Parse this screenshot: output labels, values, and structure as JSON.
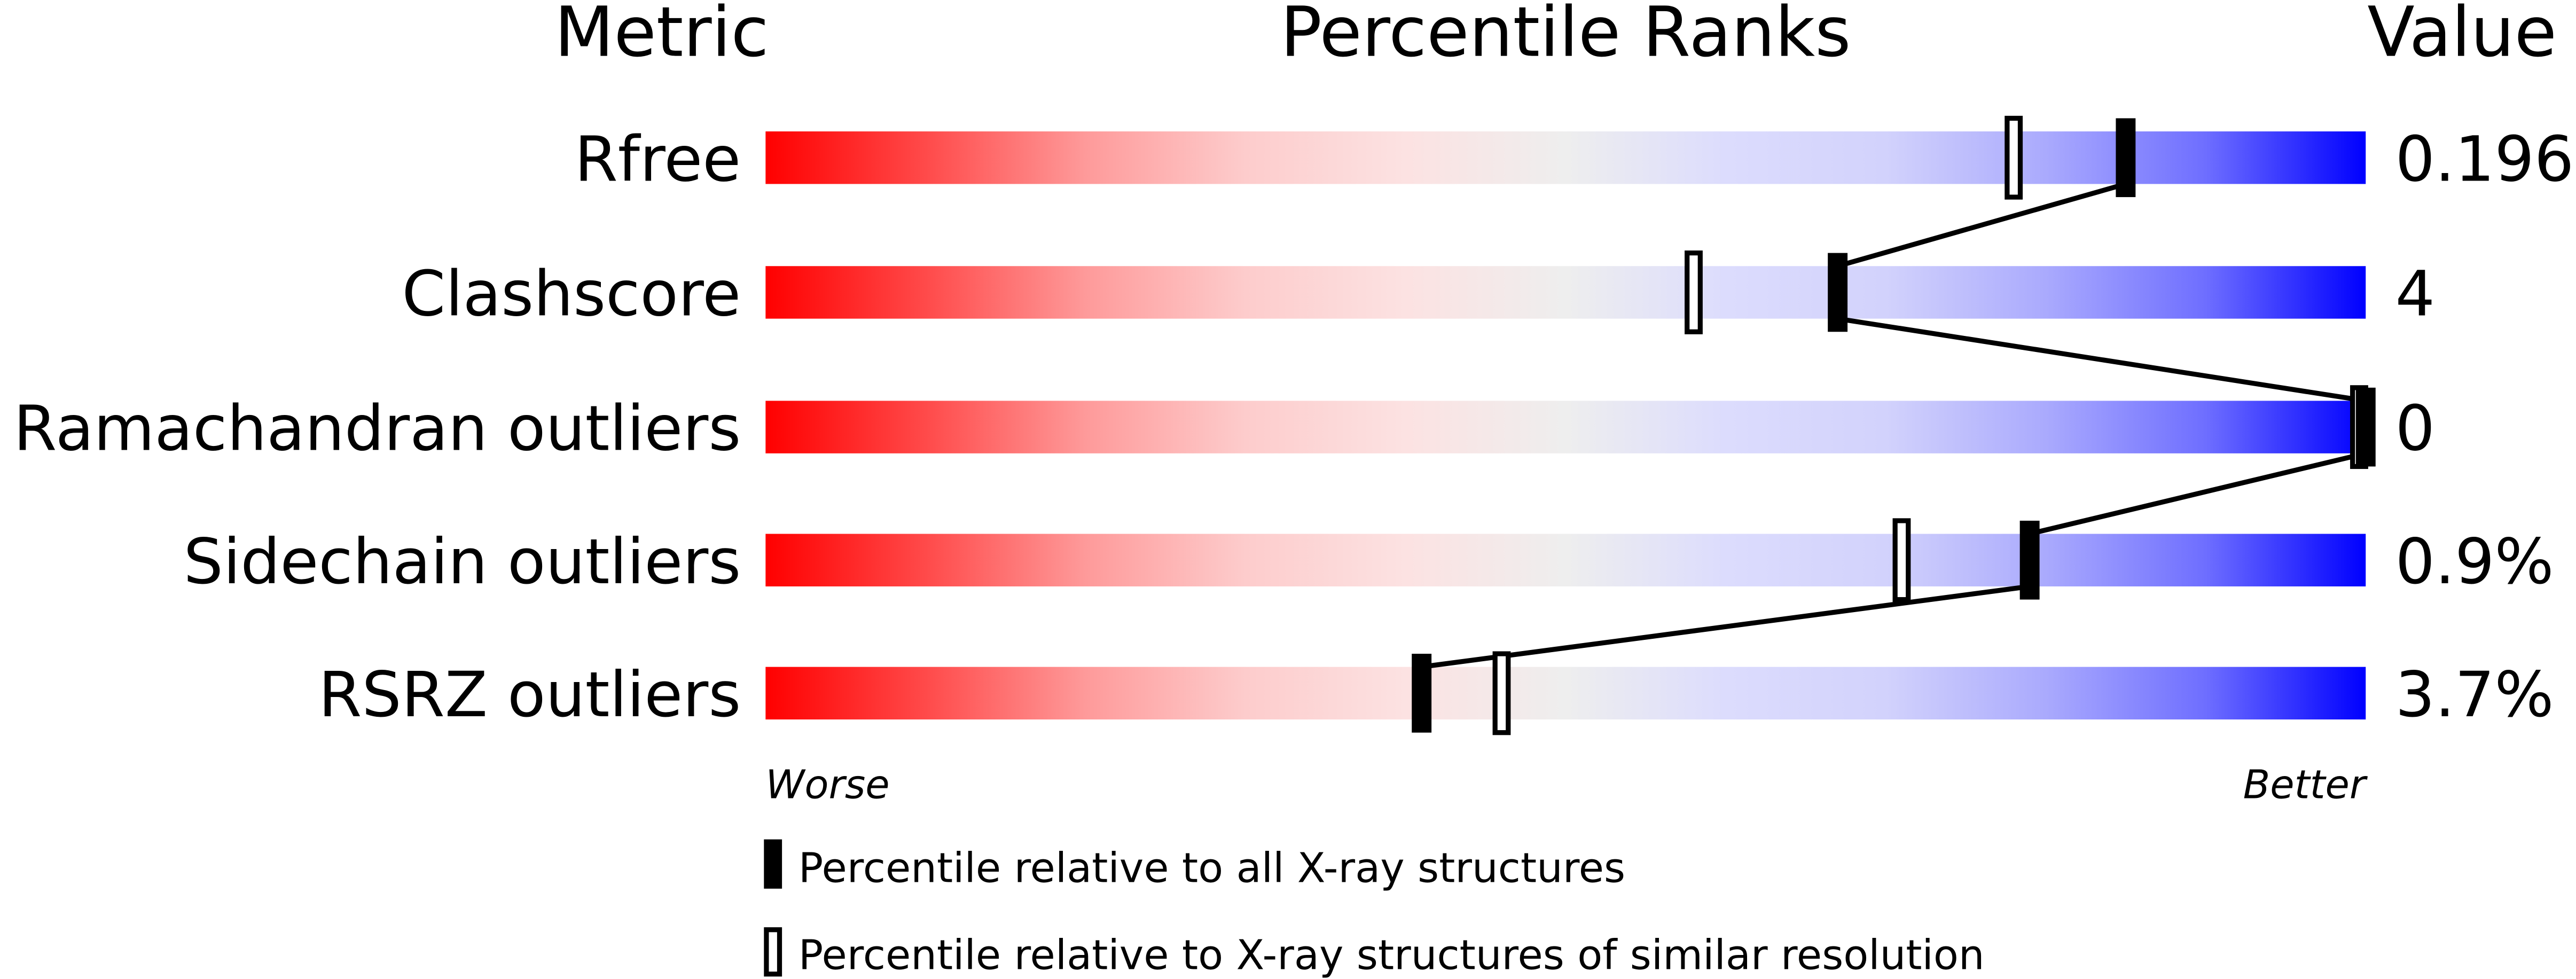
{
  "chart_data": {
    "type": "percentile-slider",
    "headers": {
      "metric": "Metric",
      "percentile": "Percentile Ranks",
      "value": "Value"
    },
    "xlim": [
      0,
      100
    ],
    "metrics": [
      {
        "name": "Rfree",
        "value": "0.196",
        "percentile_all": 85,
        "percentile_similar": 78
      },
      {
        "name": "Clashscore",
        "value": "4",
        "percentile_all": 67,
        "percentile_similar": 58
      },
      {
        "name": "Ramachandran outliers",
        "value": "0",
        "percentile_all": 100,
        "percentile_similar": 100
      },
      {
        "name": "Sidechain outliers",
        "value": "0.9%",
        "percentile_all": 79,
        "percentile_similar": 71
      },
      {
        "name": "RSRZ outliers",
        "value": "3.7%",
        "percentile_all": 41,
        "percentile_similar": 46
      }
    ],
    "axis": {
      "worse": "Worse",
      "better": "Better"
    },
    "legend": {
      "all": "Percentile relative to all X-ray structures",
      "similar": "Percentile relative to X-ray structures of similar resolution"
    },
    "colors": {
      "worse": "#ff0000",
      "middle": "#eeeeee",
      "better": "#0000ff",
      "marker": "#000000"
    }
  }
}
